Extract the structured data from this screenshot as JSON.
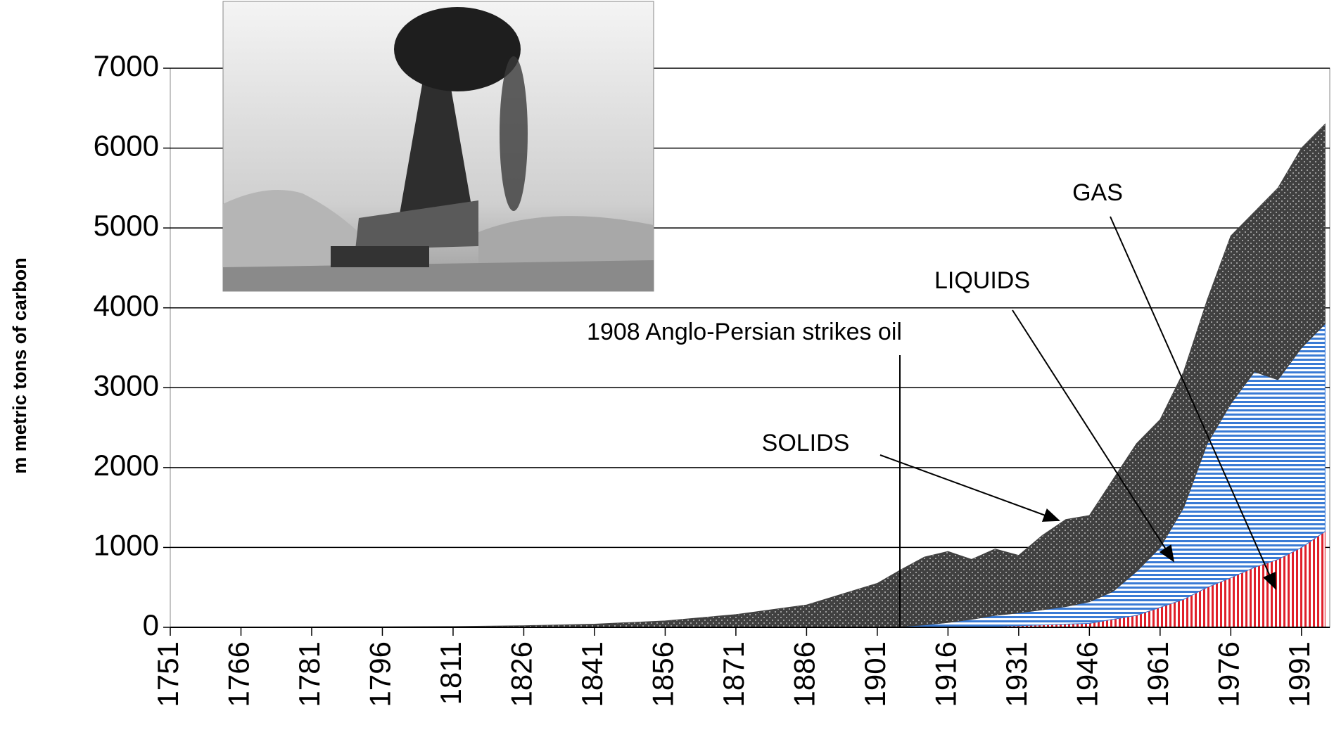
{
  "chart_data": {
    "type": "stacked-area",
    "y_label": "m metric tons of carbon",
    "annotation": "1908 Anglo-Persian strikes oil",
    "x": [
      1751,
      1766,
      1781,
      1796,
      1811,
      1826,
      1841,
      1856,
      1871,
      1886,
      1901,
      1906,
      1911,
      1916,
      1921,
      1926,
      1931,
      1936,
      1941,
      1946,
      1951,
      1956,
      1961,
      1966,
      1971,
      1976,
      1981,
      1986,
      1991,
      1996
    ],
    "series": [
      {
        "name": "GAS",
        "color": "#e0202a",
        "values": [
          0,
          0,
          0,
          0,
          0,
          0,
          0,
          0,
          0,
          0,
          0,
          0,
          2,
          4,
          8,
          12,
          20,
          30,
          40,
          50,
          100,
          150,
          250,
          350,
          500,
          620,
          750,
          850,
          1000,
          1200
        ]
      },
      {
        "name": "LIQUIDS",
        "color": "#3a7bd5",
        "values": [
          0,
          0,
          0,
          0,
          0,
          0,
          0,
          0,
          0,
          0,
          5,
          10,
          28,
          56,
          92,
          138,
          160,
          190,
          220,
          270,
          350,
          550,
          750,
          1150,
          1800,
          2180,
          2450,
          2250,
          2500,
          2600
        ]
      },
      {
        "name": "SOLIDS",
        "color": "#404040",
        "values": [
          3,
          4,
          5,
          7,
          10,
          20,
          40,
          80,
          160,
          280,
          545,
          710,
          850,
          890,
          750,
          830,
          720,
          930,
          1090,
          1080,
          1400,
          1600,
          1600,
          1700,
          1800,
          2100,
          2000,
          2400,
          2500,
          2500
        ]
      }
    ],
    "xlim": [
      1751,
      1997
    ],
    "xticks": [
      1751,
      1766,
      1781,
      1796,
      1811,
      1826,
      1841,
      1856,
      1871,
      1886,
      1901,
      1916,
      1931,
      1946,
      1961,
      1976,
      1991
    ],
    "ylim": [
      0,
      7000
    ],
    "yticks": [
      0,
      1000,
      2000,
      3000,
      4000,
      5000,
      6000,
      7000
    ],
    "grid": true
  }
}
